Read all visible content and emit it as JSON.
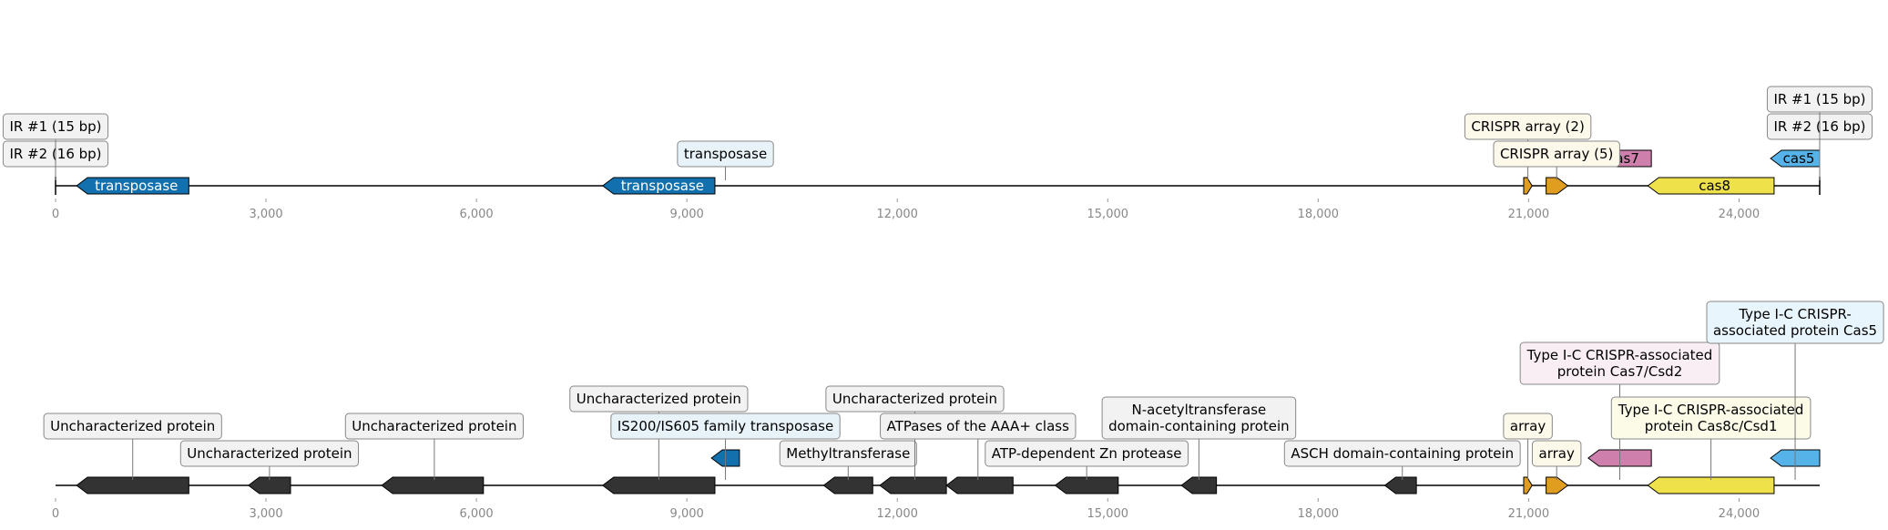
{
  "x_axis": {
    "ticks": [
      0,
      3000,
      6000,
      9000,
      12000,
      15000,
      18000,
      21000,
      24000
    ],
    "tick_labels": [
      "0",
      "3,000",
      "6,000",
      "9,000",
      "12,000",
      "15,000",
      "18,000",
      "21,000",
      "24,000"
    ],
    "xlim": [
      0,
      25150
    ]
  },
  "colors": {
    "transposase": "#1170ad",
    "crispr_array": "#e19d1f",
    "cas7": "#cf7fab",
    "cas8": "#efe14a",
    "cas5": "#56b3e9",
    "uncharacterized": "#333333",
    "box_neutral": "#f2f2f2",
    "box_transposase": "#e8f2f9",
    "box_crispr": "#fcf8ea",
    "box_cas7": "#f9eef4",
    "box_cas8": "#fcfbe8",
    "box_cas5": "#e9f5fc"
  },
  "panels": [
    {
      "id": "top",
      "features": [
        {
          "start": 300,
          "end": 1900,
          "strand": -1,
          "level": 0,
          "color": "transposase",
          "label": "transposase",
          "label_color": "#ffffff"
        },
        {
          "start": 7800,
          "end": 9400,
          "strand": -1,
          "level": 0,
          "color": "transposase",
          "label": "transposase",
          "label_color": "#ffffff"
        },
        {
          "start": 9350,
          "end": 9750,
          "strand": -1,
          "level": 1,
          "color": "transposase"
        },
        {
          "start": 20930,
          "end": 21050,
          "strand": 1,
          "level": 0,
          "color": "crispr_array"
        },
        {
          "start": 21250,
          "end": 21560,
          "strand": 1,
          "level": 0,
          "color": "crispr_array"
        },
        {
          "start": 21850,
          "end": 22750,
          "strand": -1,
          "level": 1,
          "color": "cas7",
          "label": "cas7",
          "label_color": "#000000"
        },
        {
          "start": 22700,
          "end": 24500,
          "strand": -1,
          "level": 0,
          "color": "cas8",
          "label": "cas8",
          "label_color": "#000000"
        },
        {
          "start": 24450,
          "end": 25150,
          "strand": -1,
          "level": 1,
          "color": "cas5",
          "label": "cas5",
          "label_color": "#000000"
        }
      ],
      "markers": [
        0,
        25150
      ],
      "annotations": [
        {
          "text": "IR #2 (16 bp)",
          "pos": 0,
          "line": 2,
          "box": "box_neutral"
        },
        {
          "text": "IR #1 (15 bp)",
          "pos": 0,
          "line": 3,
          "box": "box_neutral"
        },
        {
          "text": "transposase",
          "pos": 9550,
          "line": 2,
          "box": "box_transposase"
        },
        {
          "text": "CRISPR array (2)",
          "pos": 20990,
          "line": 3,
          "box": "box_crispr"
        },
        {
          "text": "CRISPR array (5)",
          "pos": 21400,
          "line": 2,
          "box": "box_crispr"
        },
        {
          "text": "IR #2 (16 bp)",
          "pos": 25150,
          "line": 3,
          "box": "box_neutral"
        },
        {
          "text": "IR #1 (15 bp)",
          "pos": 25150,
          "line": 4,
          "box": "box_neutral"
        }
      ]
    },
    {
      "id": "bottom",
      "features": [
        {
          "start": 300,
          "end": 1900,
          "strand": -1,
          "level": 0,
          "color": "uncharacterized"
        },
        {
          "start": 2750,
          "end": 3350,
          "strand": -1,
          "level": 0,
          "color": "uncharacterized"
        },
        {
          "start": 4650,
          "end": 6100,
          "strand": -1,
          "level": 0,
          "color": "uncharacterized"
        },
        {
          "start": 7800,
          "end": 9400,
          "strand": -1,
          "level": 0,
          "color": "uncharacterized"
        },
        {
          "start": 9350,
          "end": 9750,
          "strand": -1,
          "level": 1,
          "color": "transposase"
        },
        {
          "start": 10950,
          "end": 11650,
          "strand": -1,
          "level": 0,
          "color": "uncharacterized"
        },
        {
          "start": 11750,
          "end": 12700,
          "strand": -1,
          "level": 0,
          "color": "uncharacterized"
        },
        {
          "start": 12700,
          "end": 13650,
          "strand": -1,
          "level": 0,
          "color": "uncharacterized"
        },
        {
          "start": 14250,
          "end": 15150,
          "strand": -1,
          "level": 0,
          "color": "uncharacterized"
        },
        {
          "start": 16050,
          "end": 16550,
          "strand": -1,
          "level": 0,
          "color": "uncharacterized"
        },
        {
          "start": 18950,
          "end": 19400,
          "strand": -1,
          "level": 0,
          "color": "uncharacterized"
        },
        {
          "start": 20930,
          "end": 21050,
          "strand": 1,
          "level": 0,
          "color": "crispr_array"
        },
        {
          "start": 21250,
          "end": 21560,
          "strand": 1,
          "level": 0,
          "color": "crispr_array"
        },
        {
          "start": 21850,
          "end": 22750,
          "strand": -1,
          "level": 1,
          "color": "cas7"
        },
        {
          "start": 22700,
          "end": 24500,
          "strand": -1,
          "level": 0,
          "color": "cas8"
        },
        {
          "start": 24450,
          "end": 25150,
          "strand": -1,
          "level": 1,
          "color": "cas5"
        }
      ],
      "markers": [],
      "annotations": [
        {
          "text": "Uncharacterized protein",
          "pos": 1100,
          "line": 3,
          "box": "box_neutral"
        },
        {
          "text": "Uncharacterized protein",
          "pos": 3050,
          "line": 2,
          "box": "box_neutral"
        },
        {
          "text": "Uncharacterized protein",
          "pos": 5400,
          "line": 3,
          "box": "box_neutral"
        },
        {
          "text": "Uncharacterized protein",
          "pos": 8600,
          "line": 4,
          "box": "box_neutral"
        },
        {
          "text": "IS200/IS605 family transposase",
          "pos": 9550,
          "line": 3,
          "box": "box_transposase"
        },
        {
          "text": "Methyltransferase",
          "pos": 11300,
          "line": 2,
          "box": "box_neutral"
        },
        {
          "text": "Uncharacterized protein",
          "pos": 12250,
          "line": 4,
          "box": "box_neutral"
        },
        {
          "text": "ATPases of the AAA+ class",
          "pos": 13150,
          "line": 3,
          "box": "box_neutral"
        },
        {
          "text": "ATP-dependent Zn protease",
          "pos": 14700,
          "line": 2,
          "box": "box_neutral"
        },
        {
          "text": "N-acetyltransferase\ndomain-containing protein",
          "pos": 16300,
          "line": 3,
          "box": "box_neutral",
          "lines": 2
        },
        {
          "text": "ASCH domain-containing protein",
          "pos": 19200,
          "line": 2,
          "box": "box_neutral"
        },
        {
          "text": "array",
          "pos": 20990,
          "line": 3,
          "box": "box_crispr"
        },
        {
          "text": "array",
          "pos": 21400,
          "line": 2,
          "box": "box_crispr"
        },
        {
          "text": "Type I-C CRISPR-associated\nprotein Cas7/Csd2",
          "pos": 22300,
          "line": 5,
          "box": "box_cas7",
          "lines": 2
        },
        {
          "text": "Type I-C CRISPR-associated\nprotein Cas8c/Csd1",
          "pos": 23600,
          "line": 3,
          "box": "box_cas8",
          "lines": 2
        },
        {
          "text": "Type I-C CRISPR-\nassociated protein Cas5",
          "pos": 24800,
          "line": 6.5,
          "box": "box_cas5",
          "lines": 2
        }
      ]
    }
  ]
}
